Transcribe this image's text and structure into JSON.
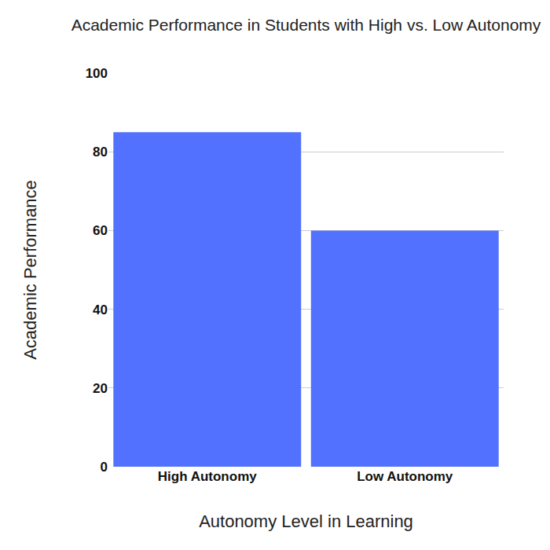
{
  "chart_data": {
    "type": "bar",
    "title": "Academic Performance in Students with High vs. Low Autonomy",
    "x_label": "Autonomy Level in Learning",
    "y_label": "Academic Performance",
    "categories": [
      "High Autonomy",
      "Low Autonomy"
    ],
    "values": [
      85,
      60
    ],
    "color": "#5271ff",
    "ylim": [
      0,
      100
    ],
    "yticks": [
      0,
      20,
      40,
      60,
      80,
      100
    ],
    "grid": true
  }
}
